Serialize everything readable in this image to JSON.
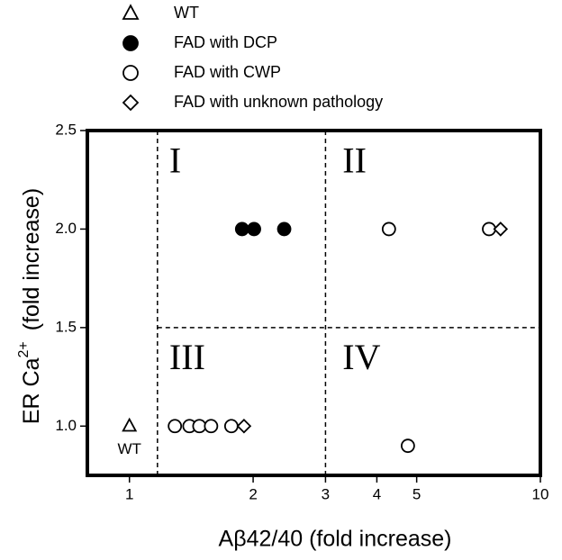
{
  "chart_data": {
    "type": "scatter",
    "x_label": "Aβ42/40 (fold increase)",
    "y_label": {
      "text": "ER Ca",
      "superscript": "2+",
      "suffix": "(fold increase)"
    },
    "x_scale": "log",
    "xlim": [
      0.79,
      10
    ],
    "xticks": [
      1,
      2,
      3,
      4,
      5,
      10
    ],
    "ylim": [
      0.75,
      2.5
    ],
    "yticks": [
      {
        "value": 1,
        "label": "1.0"
      },
      {
        "value": 1.5,
        "label": "1.5"
      },
      {
        "value": 2,
        "label": "2.0"
      },
      {
        "value": 2.5,
        "label": "2.5"
      }
    ],
    "series": [
      {
        "name": "WT",
        "marker": "triangle",
        "color": "#000000",
        "filled": false,
        "x": [
          1
        ],
        "values": [
          1
        ]
      },
      {
        "name": "FAD with DCP",
        "marker": "circle",
        "color": "#000000",
        "filled": true,
        "x": [
          1.88,
          2.01,
          2.38
        ],
        "values": [
          2,
          2,
          2
        ]
      },
      {
        "name": "FAD with CWP",
        "marker": "circle",
        "color": "#000000",
        "filled": false,
        "x": [
          4.28,
          7.5,
          1.29,
          1.4,
          1.48,
          1.58,
          1.77,
          4.76
        ],
        "values": [
          2,
          2,
          1,
          1,
          1,
          1,
          1,
          0.9
        ]
      },
      {
        "name": "FAD with unknown pathology",
        "marker": "diamond",
        "color": "#000000",
        "filled": false,
        "x": [
          8,
          1.9
        ],
        "values": [
          2,
          1
        ]
      }
    ],
    "reference_lines": [
      {
        "x": 1.17
      },
      {
        "x": 3
      },
      {
        "y": 1.5,
        "xmin": 1.17
      }
    ],
    "annotations": [
      {
        "text": "I",
        "x": 1.25,
        "y": 2.33
      },
      {
        "text": "II",
        "x": 3.3,
        "y": 2.33
      },
      {
        "text": "III",
        "x": 1.25,
        "y": 1.33
      },
      {
        "text": "IV",
        "x": 3.3,
        "y": 1.33
      },
      {
        "text": "WT",
        "x": 1,
        "y": 0.88
      }
    ]
  }
}
